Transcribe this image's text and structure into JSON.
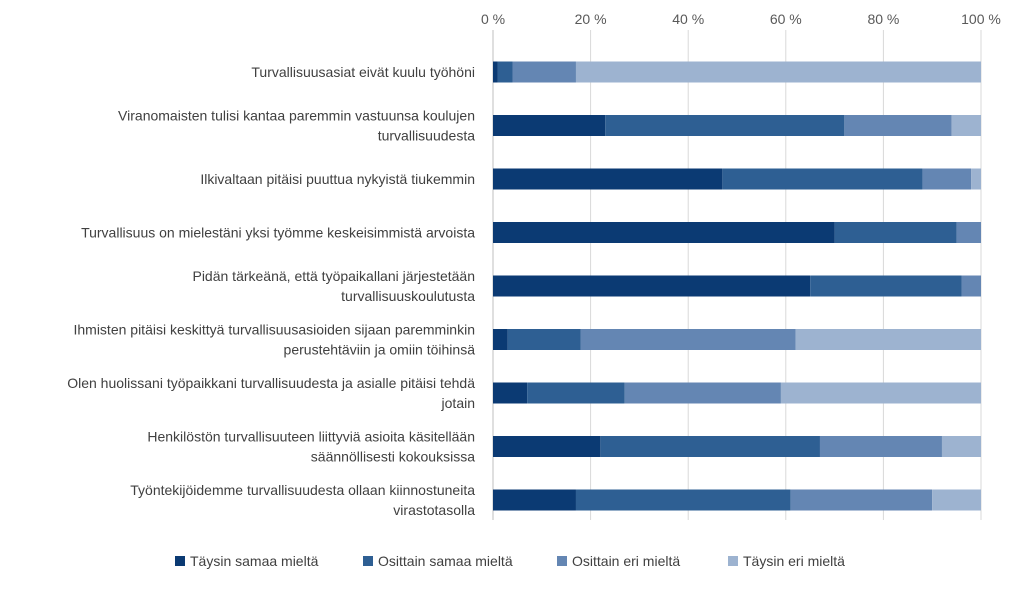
{
  "chart_data": {
    "type": "bar",
    "orientation": "horizontal",
    "stacked": "percent",
    "title": "",
    "xlabel": "",
    "ylabel": "",
    "xlim": [
      0,
      100
    ],
    "axis_position": "top",
    "grid": true,
    "legend_position": "bottom",
    "ticks": [
      "0 %",
      "20 %",
      "40 %",
      "60 %",
      "80 %",
      "100 %"
    ],
    "tick_values": [
      0,
      20,
      40,
      60,
      80,
      100
    ],
    "categories": [
      [
        "Turvallisuusasiat eivät kuulu työhöni"
      ],
      [
        "Viranomaisten tulisi kantaa paremmin vastuunsa koulujen",
        "turvallisuudesta"
      ],
      [
        "Ilkivaltaan pitäisi puuttua nykyistä tiukemmin"
      ],
      [
        "Turvallisuus on mielestäni yksi työmme keskeisimmistä arvoista"
      ],
      [
        "Pidän tärkeänä, että työpaikallani järjestetään",
        "turvallisuuskoulutusta"
      ],
      [
        "Ihmisten pitäisi keskittyä turvallisuusasioiden sijaan paremminkin",
        "perustehtäviin ja omiin töihinsä"
      ],
      [
        "Olen huolissani työpaikkani turvallisuudesta ja asialle pitäisi tehdä",
        "jotain"
      ],
      [
        "Henkilöstön turvallisuuteen liittyviä asioita käsitellään",
        "säännöllisesti kokouksissa"
      ],
      [
        "Työntekijöidemme turvallisuudesta ollaan kiinnostuneita",
        "virastotasolla"
      ]
    ],
    "series": [
      {
        "name": "Täysin samaa mieltä",
        "color": "#0b3a73",
        "values": [
          1,
          23,
          47,
          70,
          65,
          3,
          7,
          22,
          17
        ]
      },
      {
        "name": "Osittain samaa mieltä",
        "color": "#2e5f93",
        "values": [
          3,
          49,
          41,
          25,
          31,
          15,
          20,
          45,
          44
        ]
      },
      {
        "name": "Osittain eri mieltä",
        "color": "#6486b3",
        "values": [
          13,
          22,
          10,
          5,
          4,
          44,
          32,
          25,
          29
        ]
      },
      {
        "name": "Täysin eri mieltä",
        "color": "#9db3d0",
        "values": [
          83,
          6,
          2,
          0,
          0,
          38,
          41,
          8,
          10
        ]
      }
    ],
    "colors": {
      "gridline": "#d9d9d9",
      "axis": "#bfbfbf",
      "text": "#404040"
    }
  }
}
